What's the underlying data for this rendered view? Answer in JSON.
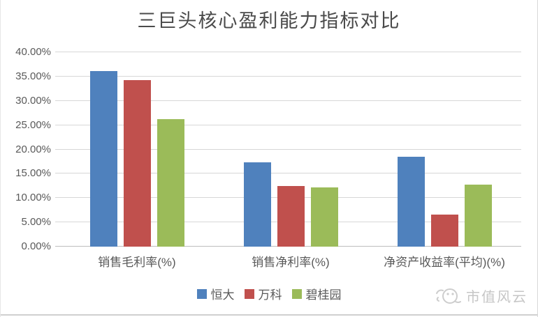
{
  "chart_data": {
    "type": "bar",
    "title": "三巨头核心盈利能力指标对比",
    "categories": [
      "销售毛利率(%)",
      "销售净利率(%)",
      "净资产收益率(平均)(%)"
    ],
    "series": [
      {
        "name": "恒大",
        "color": "#4f81bd",
        "values": [
          36.1,
          17.3,
          18.5
        ]
      },
      {
        "name": "万科",
        "color": "#c0504d",
        "values": [
          34.3,
          12.5,
          6.6
        ]
      },
      {
        "name": "碧桂园",
        "color": "#9bbb59",
        "values": [
          26.3,
          12.2,
          12.8
        ]
      }
    ],
    "xlabel": "",
    "ylabel": "",
    "ylim": [
      0,
      40
    ],
    "grid": true,
    "legend_position": "bottom",
    "yticks": [
      {
        "value": 0,
        "label": "0.00%"
      },
      {
        "value": 5,
        "label": "5.00%"
      },
      {
        "value": 10,
        "label": "10.00%"
      },
      {
        "value": 15,
        "label": "15.00%"
      },
      {
        "value": 20,
        "label": "20.00%"
      },
      {
        "value": 25,
        "label": "25.00%"
      },
      {
        "value": 30,
        "label": "30.00%"
      },
      {
        "value": 35,
        "label": "35.00%"
      },
      {
        "value": 40,
        "label": "40.00%"
      }
    ],
    "colors": {
      "gridline": "#d7d7d7",
      "baseline": "#bdbdbd",
      "axis_text": "#595959",
      "title_text": "#4a4a4a"
    }
  },
  "watermark": {
    "text": "市值风云"
  }
}
